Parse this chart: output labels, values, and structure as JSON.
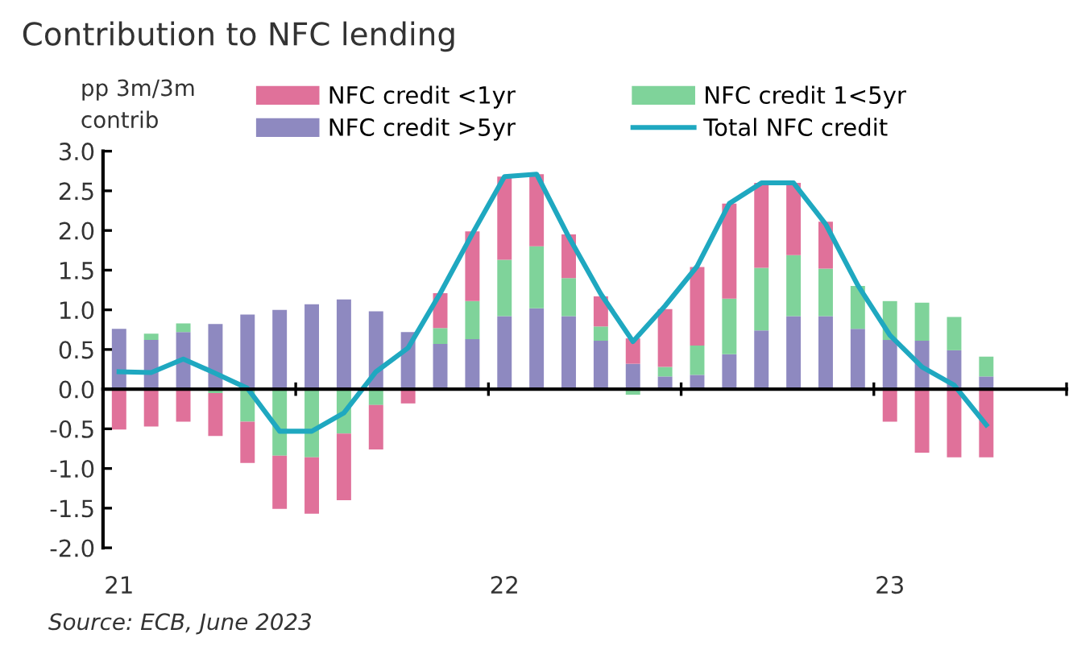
{
  "chart_data": {
    "type": "bar",
    "stacked": true,
    "title": "Contribution to NFC lending",
    "ylabel": "pp 3m/3m\ncontrib",
    "categories": [
      "21",
      null,
      null,
      null,
      null,
      null,
      null,
      null,
      null,
      null,
      null,
      null,
      "22",
      null,
      null,
      null,
      null,
      null,
      null,
      null,
      null,
      null,
      null,
      null,
      "23",
      null,
      null,
      null,
      null,
      null
    ],
    "series": [
      {
        "name": "NFC credit >5yr",
        "color": "#8e89c0",
        "values": [
          0.76,
          0.62,
          0.72,
          0.82,
          0.94,
          1.0,
          1.07,
          1.13,
          0.98,
          0.72,
          0.57,
          0.63,
          0.92,
          1.02,
          0.92,
          0.61,
          0.32,
          0.16,
          0.18,
          0.44,
          0.74,
          0.92,
          0.92,
          0.76,
          0.62,
          0.61,
          0.49,
          0.16,
          null,
          null
        ]
      },
      {
        "name": "NFC credit 1<5yr",
        "color": "#7fd39a",
        "values": [
          null,
          0.08,
          0.11,
          -0.05,
          -0.41,
          -0.84,
          -0.86,
          -0.56,
          -0.2,
          null,
          0.2,
          0.48,
          0.71,
          0.78,
          0.48,
          0.18,
          -0.07,
          0.12,
          0.37,
          0.7,
          0.79,
          0.77,
          0.6,
          0.54,
          0.49,
          0.48,
          0.42,
          0.25,
          null,
          null
        ]
      },
      {
        "name": "NFC credit <1yr",
        "color": "#e0719a",
        "values": [
          -0.51,
          -0.47,
          -0.41,
          -0.54,
          -0.52,
          -0.67,
          -0.71,
          -0.84,
          -0.56,
          -0.18,
          0.44,
          0.88,
          1.05,
          0.91,
          0.55,
          0.38,
          0.32,
          0.73,
          0.99,
          1.2,
          1.07,
          0.91,
          0.59,
          null,
          -0.41,
          -0.8,
          -0.86,
          -0.86,
          null,
          null
        ]
      },
      {
        "name": "Total NFC credit",
        "type": "line",
        "color": "#1fa8c0",
        "values": [
          0.22,
          0.21,
          0.38,
          0.2,
          0.01,
          -0.53,
          -0.53,
          -0.3,
          0.22,
          0.52,
          1.21,
          1.96,
          2.68,
          2.71,
          1.92,
          1.2,
          0.6,
          1.05,
          1.55,
          2.34,
          2.6,
          2.6,
          2.08,
          1.31,
          0.68,
          0.28,
          0.05,
          -0.45,
          null,
          null
        ]
      }
    ],
    "ylim": [
      -2,
      3
    ],
    "yticks": [
      {
        "value": -2,
        "label": "-2.0"
      },
      {
        "value": -1.5,
        "label": "-1.5"
      },
      {
        "value": -1,
        "label": "-1.0"
      },
      {
        "value": -0.5,
        "label": "-0.5"
      },
      {
        "value": 0,
        "label": "0.0"
      },
      {
        "value": 0.5,
        "label": "0.5"
      },
      {
        "value": 1,
        "label": "1.0"
      },
      {
        "value": 1.5,
        "label": "1.5"
      },
      {
        "value": 2,
        "label": "2.0"
      },
      {
        "value": 2.5,
        "label": "2.5"
      },
      {
        "value": 3,
        "label": "3.0"
      }
    ],
    "legend": "top",
    "marker": "none",
    "line_style": "solid",
    "annotations": [
      "Source: ECB, June 2023"
    ]
  }
}
